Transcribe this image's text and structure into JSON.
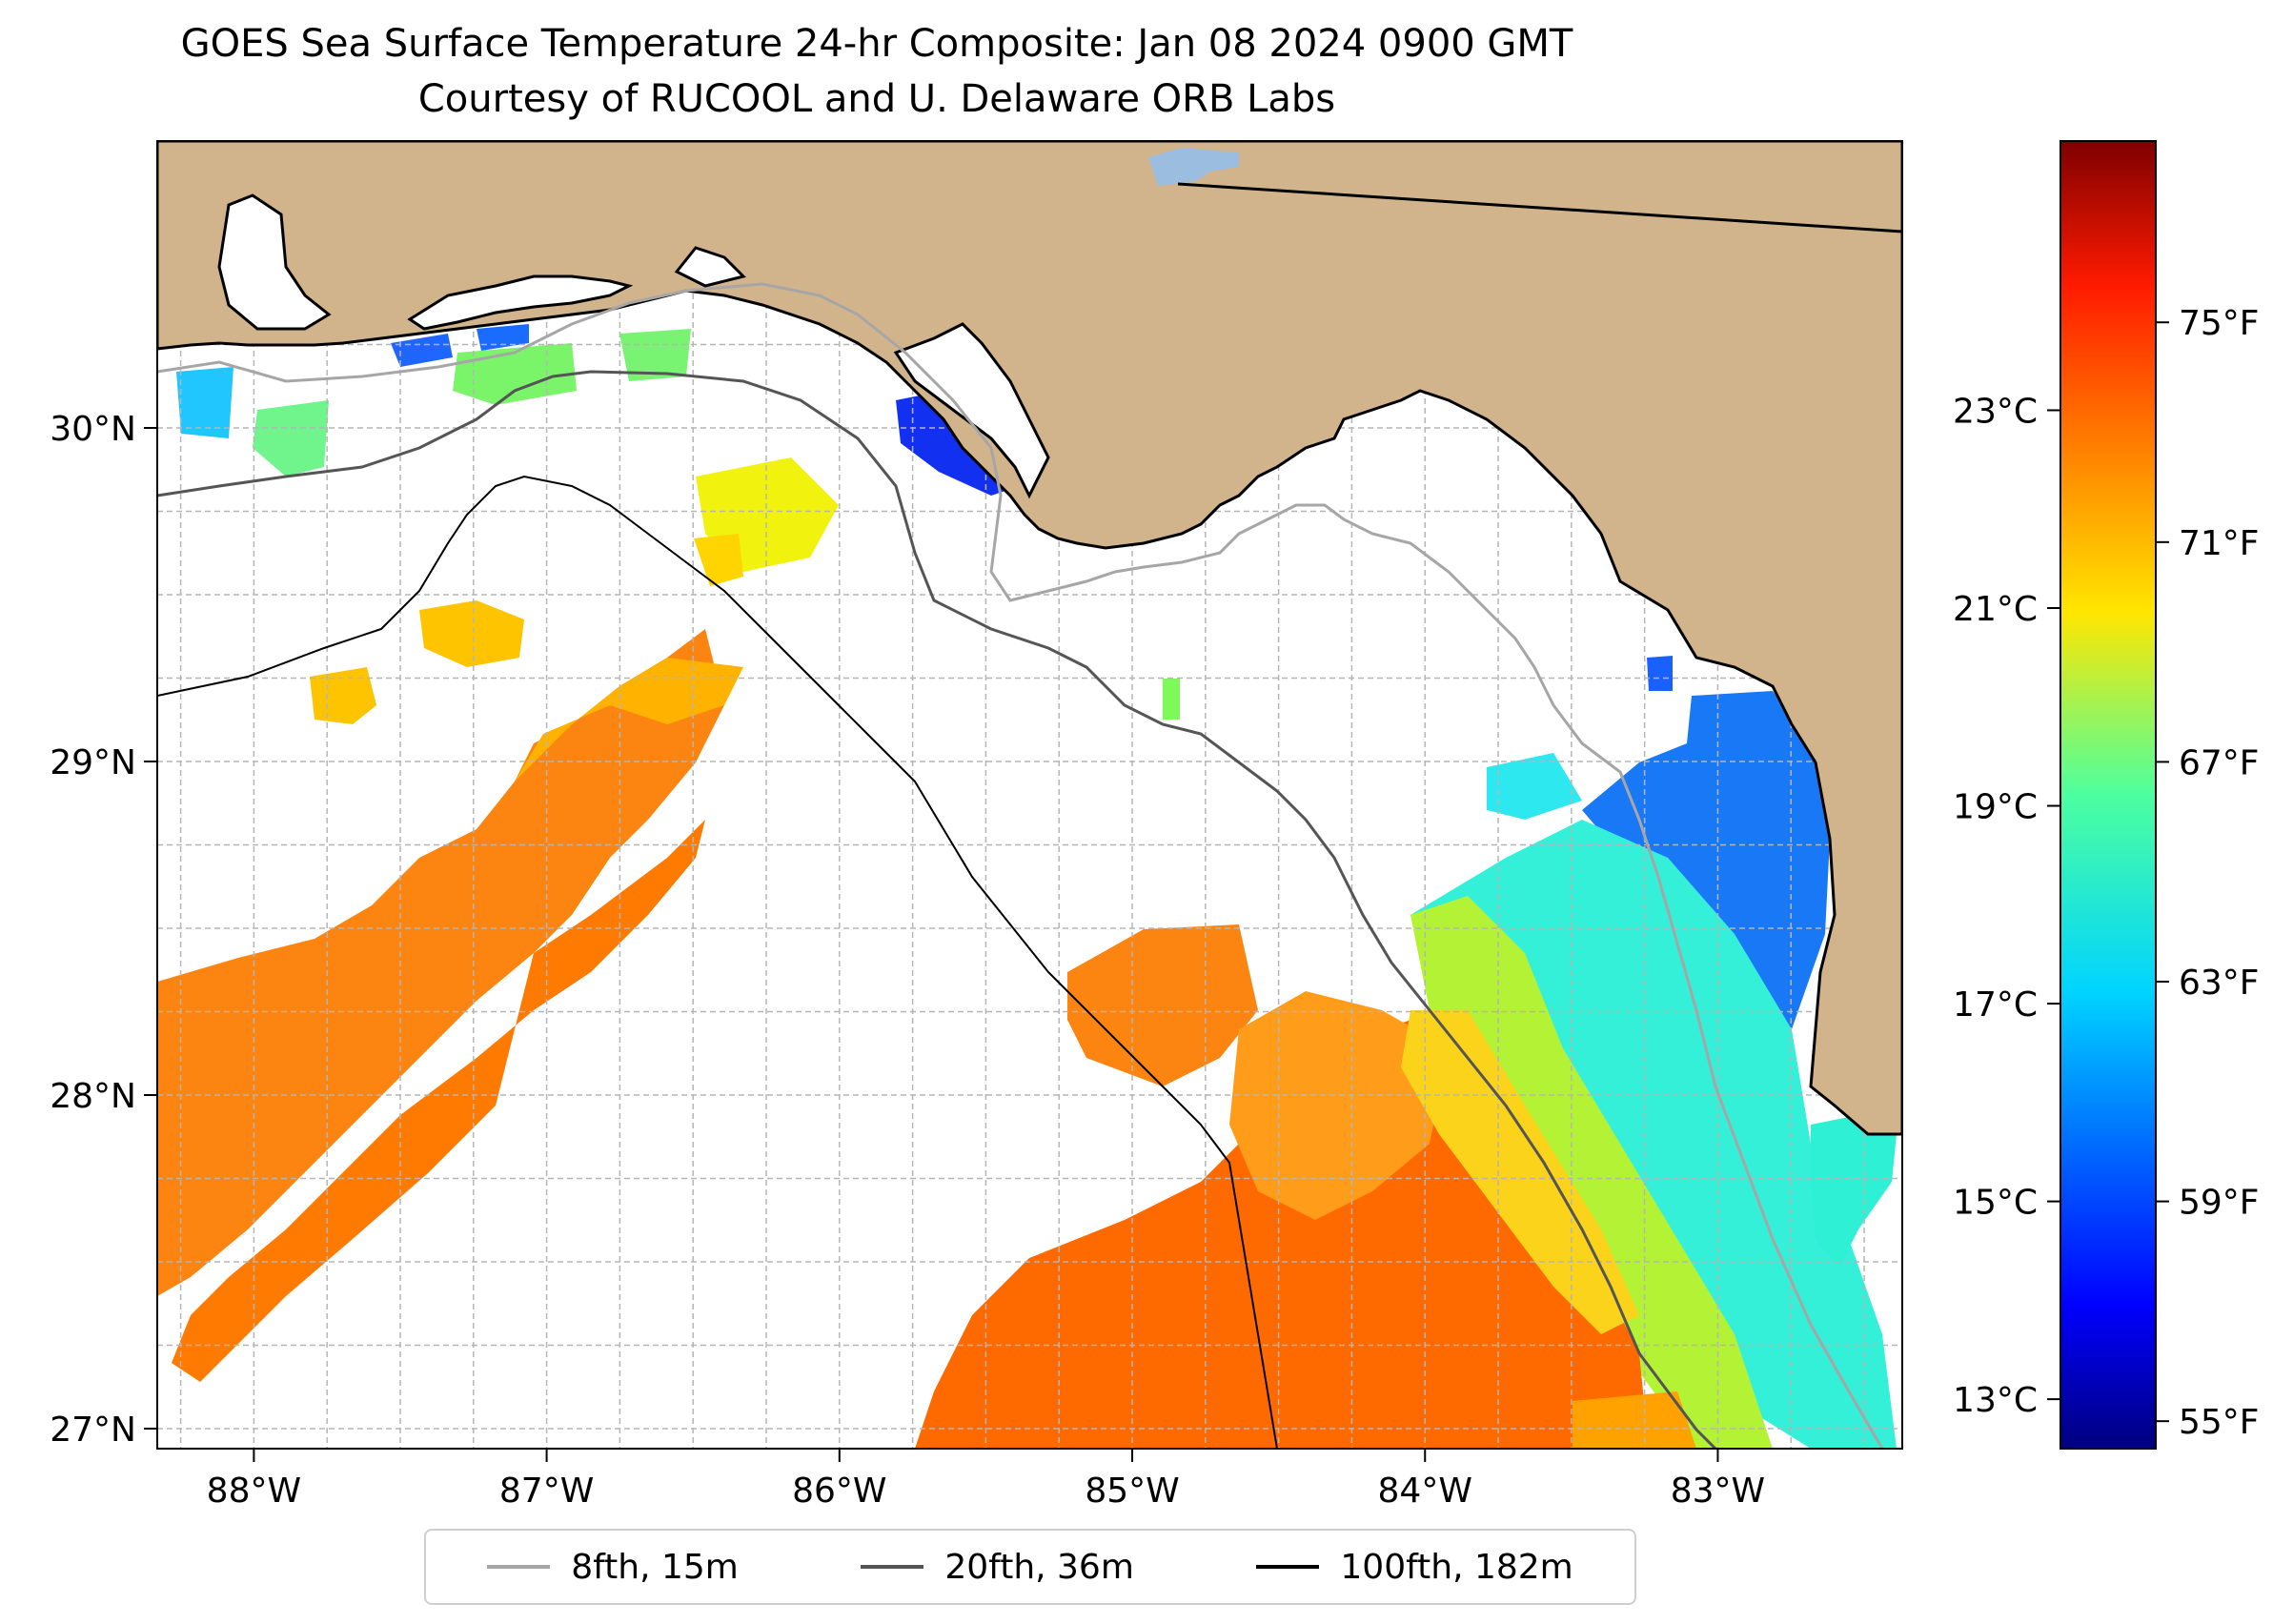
{
  "title": {
    "line1": "GOES Sea Surface Temperature 24-hr Composite: Jan 08 2024 0900 GMT",
    "line2": "Courtesy of RUCOOL and U. Delaware ORB Labs"
  },
  "map": {
    "lon_range": [
      -88.33,
      -82.37
    ],
    "lat_range": [
      26.94,
      30.86
    ],
    "lon_ticks": [
      {
        "value": -88,
        "label": "88°W"
      },
      {
        "value": -87,
        "label": "87°W"
      },
      {
        "value": -86,
        "label": "86°W"
      },
      {
        "value": -85,
        "label": "85°W"
      },
      {
        "value": -84,
        "label": "84°W"
      },
      {
        "value": -83,
        "label": "83°W"
      }
    ],
    "lat_ticks": [
      {
        "value": 30,
        "label": "30°N"
      },
      {
        "value": 29,
        "label": "29°N"
      },
      {
        "value": 28,
        "label": "28°N"
      },
      {
        "value": 27,
        "label": "27°N"
      }
    ],
    "gridlines": true,
    "land_color": "#d2b48c",
    "ocean_no_data_color": "#ffffff"
  },
  "colorbar": {
    "colormap": "jet",
    "range_f": [
      54.5,
      78.3
    ],
    "fahrenheit_ticks": [
      {
        "value": 55,
        "label": "55°F"
      },
      {
        "value": 59,
        "label": "59°F"
      },
      {
        "value": 63,
        "label": "63°F"
      },
      {
        "value": 67,
        "label": "67°F"
      },
      {
        "value": 71,
        "label": "71°F"
      },
      {
        "value": 75,
        "label": "75°F"
      }
    ],
    "celsius_ticks": [
      {
        "value": 13,
        "label": "13°C"
      },
      {
        "value": 15,
        "label": "15°C"
      },
      {
        "value": 17,
        "label": "17°C"
      },
      {
        "value": 19,
        "label": "19°C"
      },
      {
        "value": 21,
        "label": "21°C"
      },
      {
        "value": 23,
        "label": "23°C"
      }
    ]
  },
  "legend": {
    "items": [
      {
        "label": "8fth, 15m",
        "color": "#a6a6a6"
      },
      {
        "label": "20fth, 36m",
        "color": "#555555"
      },
      {
        "label": "100fth, 182m",
        "color": "#000000"
      }
    ]
  }
}
